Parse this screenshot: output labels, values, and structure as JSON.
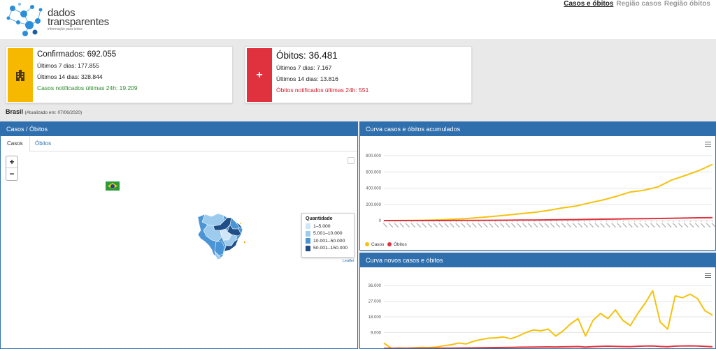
{
  "brand": {
    "line1": "dados",
    "line2": "transparentes",
    "tagline": "informação para todos"
  },
  "nav": {
    "items": [
      {
        "label": "Casos e óbitos",
        "active": true
      },
      {
        "label": "Região casos",
        "active": false
      },
      {
        "label": "Região óbitos",
        "active": false
      }
    ]
  },
  "confirmed": {
    "title": "Confirmados: 692.055",
    "last7": "Últimos 7 dias: 177.855",
    "last14": "Últimos 14 dias: 328.844",
    "notified": "Casos notificados últimas 24h: 19.209",
    "color": "#f7b800",
    "icon": "hospital-icon"
  },
  "deaths": {
    "title": "Óbitos: 36.481",
    "last7": "Últimos 7 dias: 7.167",
    "last14": "Últimos 14 dias: 13.816",
    "notified": "Óbitos notificados últimas 24h: 551",
    "color": "#e0323e",
    "icon": "cross-icon",
    "icon_glyph": "+"
  },
  "location": {
    "name": "Brasil",
    "updated": "(Atualizado em: 07/06/2020)"
  },
  "map_panel": {
    "title": "Casos / Óbitos",
    "tabs": [
      "Casos",
      "Óbitos"
    ],
    "zoom_in": "+",
    "zoom_out": "−",
    "legend_title": "Quantidade",
    "legend": [
      {
        "label": "1–5.000",
        "color": "#cfe6f8"
      },
      {
        "label": "5.001–10.000",
        "color": "#9ccbee"
      },
      {
        "label": "10.001–50.000",
        "color": "#4a95d6"
      },
      {
        "label": "50.001–150.000",
        "color": "#1f4f86"
      }
    ],
    "attribution": "Leaflet"
  },
  "chart_data": [
    {
      "type": "line",
      "title": "Curva casos e óbitos acumulados",
      "ylim": [
        0,
        800000
      ],
      "yticks": [
        "0",
        "200.000",
        "400.000",
        "600.000",
        "800.000"
      ],
      "grid": true,
      "legend_position": "bottom-left",
      "series": [
        {
          "name": "Casos",
          "color": "#f4c20d",
          "values": [
            0,
            500,
            1500,
            4000,
            9000,
            16000,
            25000,
            38000,
            52000,
            68000,
            85000,
            101000,
            125000,
            155000,
            178000,
            218000,
            254000,
            300000,
            352000,
            374000,
            415000,
            498000,
            555000,
            615000,
            692055
          ]
        },
        {
          "name": "Óbitos",
          "color": "#e0323e",
          "values": [
            0,
            0,
            50,
            150,
            400,
            800,
            1300,
            2100,
            3300,
            4500,
            5900,
            7300,
            8500,
            10600,
            12400,
            14800,
            16800,
            19000,
            22000,
            23500,
            25600,
            28800,
            31300,
            34000,
            36481
          ]
        }
      ]
    },
    {
      "type": "line",
      "title": "Curva novos casos e óbitos",
      "ylim": [
        0,
        36000
      ],
      "yticks": [
        "9.000",
        "18.000",
        "27.000",
        "36.000"
      ],
      "grid": true,
      "series": [
        {
          "name": "Casos",
          "color": "#f4c20d",
          "values": [
            3000,
            0,
            200,
            100,
            300,
            500,
            400,
            700,
            1500,
            2000,
            3000,
            2500,
            4000,
            5000,
            5800,
            6000,
            6500,
            5500,
            7000,
            9000,
            10500,
            10000,
            11000,
            7000,
            10000,
            14000,
            17000,
            7000,
            16000,
            20000,
            17000,
            22000,
            16000,
            13000,
            20000,
            26000,
            33000,
            15000,
            11000,
            30000,
            29000,
            31000,
            28500,
            21500,
            19000
          ]
        },
        {
          "name": "Óbitos",
          "color": "#e0323e",
          "values": [
            0,
            0,
            0,
            0,
            0,
            20,
            30,
            50,
            80,
            100,
            150,
            200,
            250,
            300,
            350,
            400,
            450,
            500,
            600,
            650,
            700,
            750,
            800,
            750,
            850,
            900,
            1000,
            700,
            950,
            1100,
            1200,
            1100,
            1000,
            950,
            1150,
            1300,
            1350,
            1050,
            900,
            1250,
            1350,
            1400,
            1300,
            1100,
            900
          ]
        }
      ]
    }
  ]
}
